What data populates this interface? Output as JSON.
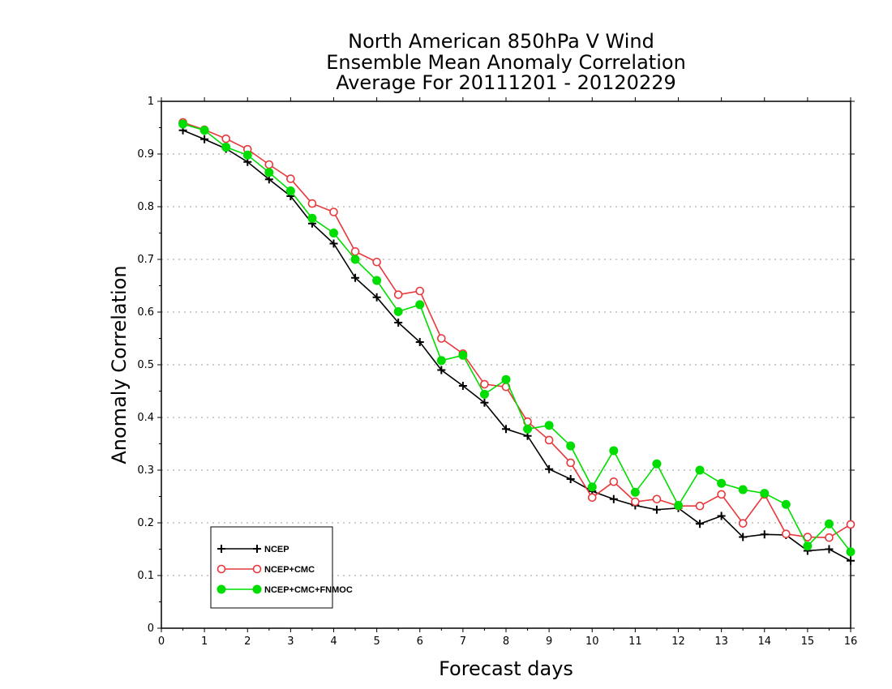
{
  "chart_data": {
    "type": "line",
    "title": [
      "North American 850hPa V Wind",
      "Ensemble Mean Anomaly Correlation",
      "Average For 20111201 - 20120229"
    ],
    "xlabel": "Forecast days",
    "ylabel": "Anomaly Correlation",
    "xlim": [
      0,
      16
    ],
    "ylim": [
      0,
      1
    ],
    "x_ticks": [
      0,
      1,
      2,
      3,
      4,
      5,
      6,
      7,
      8,
      9,
      10,
      11,
      12,
      13,
      14,
      15,
      16
    ],
    "y_ticks": [
      0,
      0.1,
      0.2,
      0.3,
      0.4,
      0.5,
      0.6,
      0.7,
      0.8,
      0.9,
      1
    ],
    "x_tick_labels": [
      "0",
      "1",
      "2",
      "3",
      "4",
      "5",
      "6",
      "7",
      "8",
      "9",
      "10",
      "11",
      "12",
      "13",
      "14",
      "15",
      "16"
    ],
    "y_tick_labels": [
      "0",
      "0.1",
      "0.2",
      "0.3",
      "0.4",
      "0.5",
      "0.6",
      "0.7",
      "0.8",
      "0.9",
      "1"
    ],
    "grid": "horizontal-dotted",
    "legend_position": "bottom-left",
    "x": [
      0.5,
      1,
      1.5,
      2,
      2.5,
      3,
      3.5,
      4,
      4.5,
      5,
      5.5,
      6,
      6.5,
      7,
      7.5,
      8,
      8.5,
      9,
      9.5,
      10,
      10.5,
      11,
      11.5,
      12,
      12.5,
      13,
      13.5,
      14,
      14.5,
      15,
      15.5,
      16
    ],
    "series": [
      {
        "name": "NCEP",
        "color": "#000000",
        "marker": "plus",
        "values": [
          0.945,
          0.928,
          0.91,
          0.885,
          0.852,
          0.82,
          0.768,
          0.73,
          0.665,
          0.628,
          0.58,
          0.543,
          0.49,
          0.46,
          0.428,
          0.378,
          0.365,
          0.302,
          0.283,
          0.26,
          0.245,
          0.233,
          0.225,
          0.228,
          0.198,
          0.213,
          0.173,
          0.178,
          0.177,
          0.147,
          0.15,
          0.128
        ]
      },
      {
        "name": "NCEP+CMC",
        "color": "#e8383c",
        "marker": "open-circle",
        "values": [
          0.96,
          0.946,
          0.929,
          0.909,
          0.88,
          0.853,
          0.806,
          0.79,
          0.715,
          0.695,
          0.633,
          0.64,
          0.55,
          0.521,
          0.463,
          0.458,
          0.392,
          0.357,
          0.314,
          0.248,
          0.278,
          0.24,
          0.245,
          0.232,
          0.232,
          0.254,
          0.199,
          0.254,
          0.179,
          0.173,
          0.172,
          0.197
        ]
      },
      {
        "name": "NCEP+CMC+FNMOC",
        "color": "#00dd00",
        "marker": "filled-circle",
        "values": [
          0.957,
          0.945,
          0.913,
          0.898,
          0.865,
          0.83,
          0.778,
          0.75,
          0.7,
          0.66,
          0.601,
          0.614,
          0.508,
          0.518,
          0.444,
          0.472,
          0.378,
          0.385,
          0.346,
          0.268,
          0.337,
          0.258,
          0.312,
          0.233,
          0.3,
          0.275,
          0.263,
          0.256,
          0.235,
          0.156,
          0.198,
          0.145
        ]
      }
    ]
  }
}
